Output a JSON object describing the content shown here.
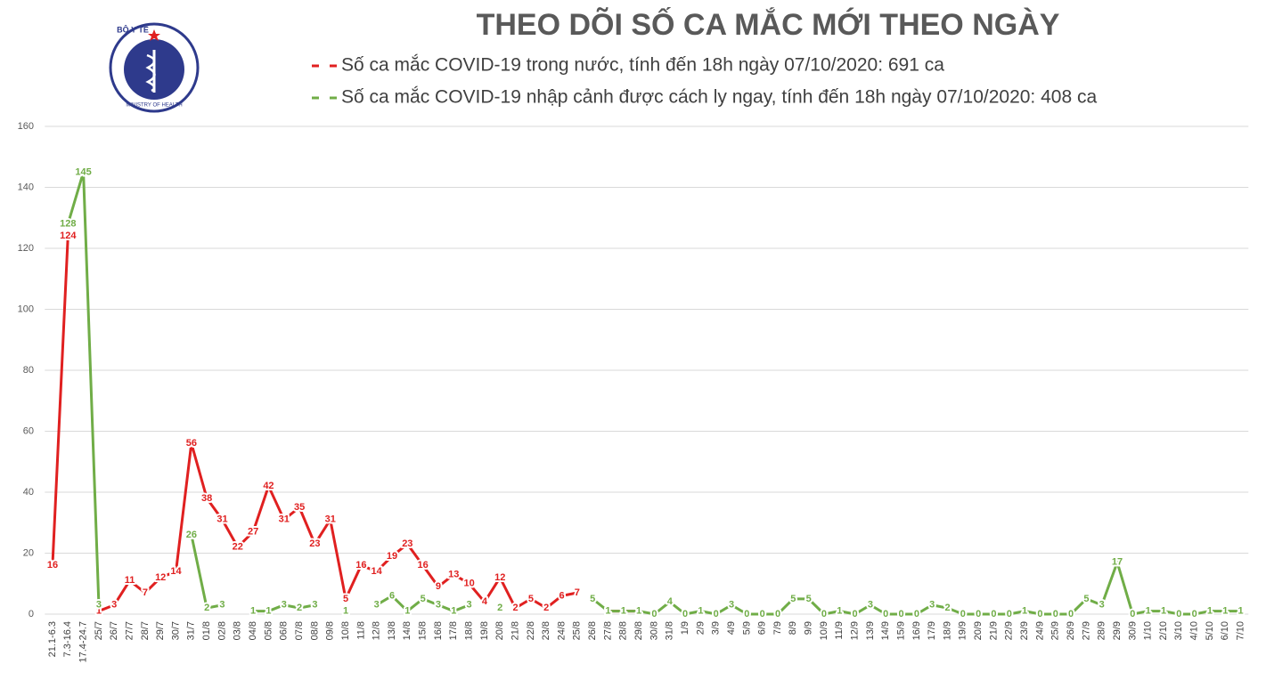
{
  "logo": {
    "top": "BỘ Y TẾ",
    "bottom": "MINISTRY OF HEALTH"
  },
  "chart_data": {
    "type": "line",
    "title": "THEO DÕI SỐ CA MẮC MỚI THEO NGÀY",
    "categories": [
      "21.1-6.3",
      "7.3-16.4",
      "17.4-24.7",
      "25/7",
      "26/7",
      "27/7",
      "28/7",
      "29/7",
      "30/7",
      "31/7",
      "01/8",
      "02/8",
      "03/8",
      "04/8",
      "05/8",
      "06/8",
      "07/8",
      "08/8",
      "09/8",
      "10/8",
      "11/8",
      "12/8",
      "13/8",
      "14/8",
      "15/8",
      "16/8",
      "17/8",
      "18/8",
      "19/8",
      "20/8",
      "21/8",
      "22/8",
      "23/8",
      "24/8",
      "25/8",
      "26/8",
      "27/8",
      "28/8",
      "29/8",
      "30/8",
      "31/8",
      "1/9",
      "2/9",
      "3/9",
      "4/9",
      "5/9",
      "6/9",
      "7/9",
      "8/9",
      "9/9",
      "10/9",
      "11/9",
      "12/9",
      "13/9",
      "14/9",
      "15/9",
      "16/9",
      "17/9",
      "18/9",
      "19/9",
      "20/9",
      "21/9",
      "22/9",
      "23/9",
      "24/9",
      "25/9",
      "26/9",
      "27/9",
      "28/9",
      "29/9",
      "30/9",
      "1/10",
      "2/10",
      "3/10",
      "4/10",
      "5/10",
      "6/10",
      "7/10"
    ],
    "series": [
      {
        "name": "Số ca mắc COVID-19 trong nước, tính đến 18h ngày 07/10/2020: 691 ca",
        "color": "#e02020",
        "values": [
          16,
          124,
          null,
          1,
          3,
          11,
          7,
          12,
          14,
          56,
          38,
          31,
          22,
          27,
          42,
          31,
          35,
          23,
          31,
          5,
          16,
          14,
          19,
          23,
          16,
          9,
          13,
          10,
          4,
          12,
          2,
          5,
          2,
          6,
          7,
          null,
          1,
          1,
          1,
          null,
          null,
          null,
          1,
          null,
          null,
          null,
          null,
          null,
          null,
          null,
          null,
          null,
          null,
          null,
          null,
          null,
          null,
          null,
          null,
          null,
          null,
          null,
          null,
          null,
          null,
          null,
          null,
          null,
          null,
          null,
          null,
          null,
          null,
          null,
          null,
          null,
          null,
          null
        ]
      },
      {
        "name": "Số ca mắc COVID-19 nhập cảnh được cách ly ngay, tính đến 18h ngày 07/10/2020: 408 ca",
        "color": "#70ad47",
        "values": [
          null,
          128,
          145,
          3,
          null,
          null,
          null,
          null,
          null,
          26,
          2,
          3,
          null,
          1,
          1,
          3,
          2,
          3,
          null,
          1,
          null,
          3,
          6,
          1,
          5,
          3,
          1,
          3,
          null,
          2,
          null,
          null,
          null,
          null,
          null,
          5,
          1,
          1,
          1,
          0,
          4,
          0,
          1,
          0,
          3,
          0,
          0,
          0,
          5,
          5,
          0,
          1,
          0,
          3,
          0,
          0,
          0,
          3,
          2,
          0,
          0,
          0,
          0,
          1,
          0,
          0,
          0,
          5,
          3,
          17,
          0,
          1,
          1,
          0,
          0,
          1,
          1,
          1
        ]
      }
    ],
    "ylim": [
      0,
      160
    ],
    "yticks": [
      0,
      20,
      40,
      60,
      80,
      100,
      120,
      140,
      160
    ],
    "grid": true
  }
}
